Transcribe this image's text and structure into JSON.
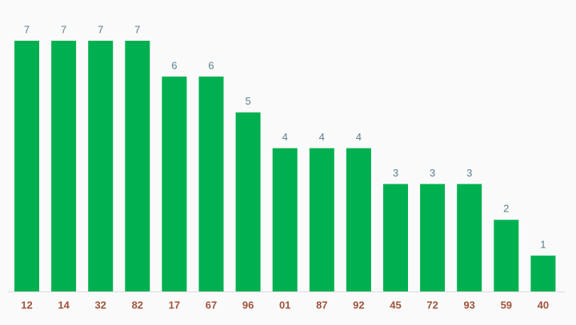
{
  "chart_data": {
    "type": "bar",
    "categories": [
      "12",
      "14",
      "32",
      "82",
      "17",
      "67",
      "96",
      "01",
      "87",
      "92",
      "45",
      "72",
      "93",
      "59",
      "40"
    ],
    "values": [
      7,
      7,
      7,
      7,
      6,
      6,
      5,
      4,
      4,
      4,
      3,
      3,
      3,
      2,
      1
    ],
    "color": "#00b050"
  }
}
